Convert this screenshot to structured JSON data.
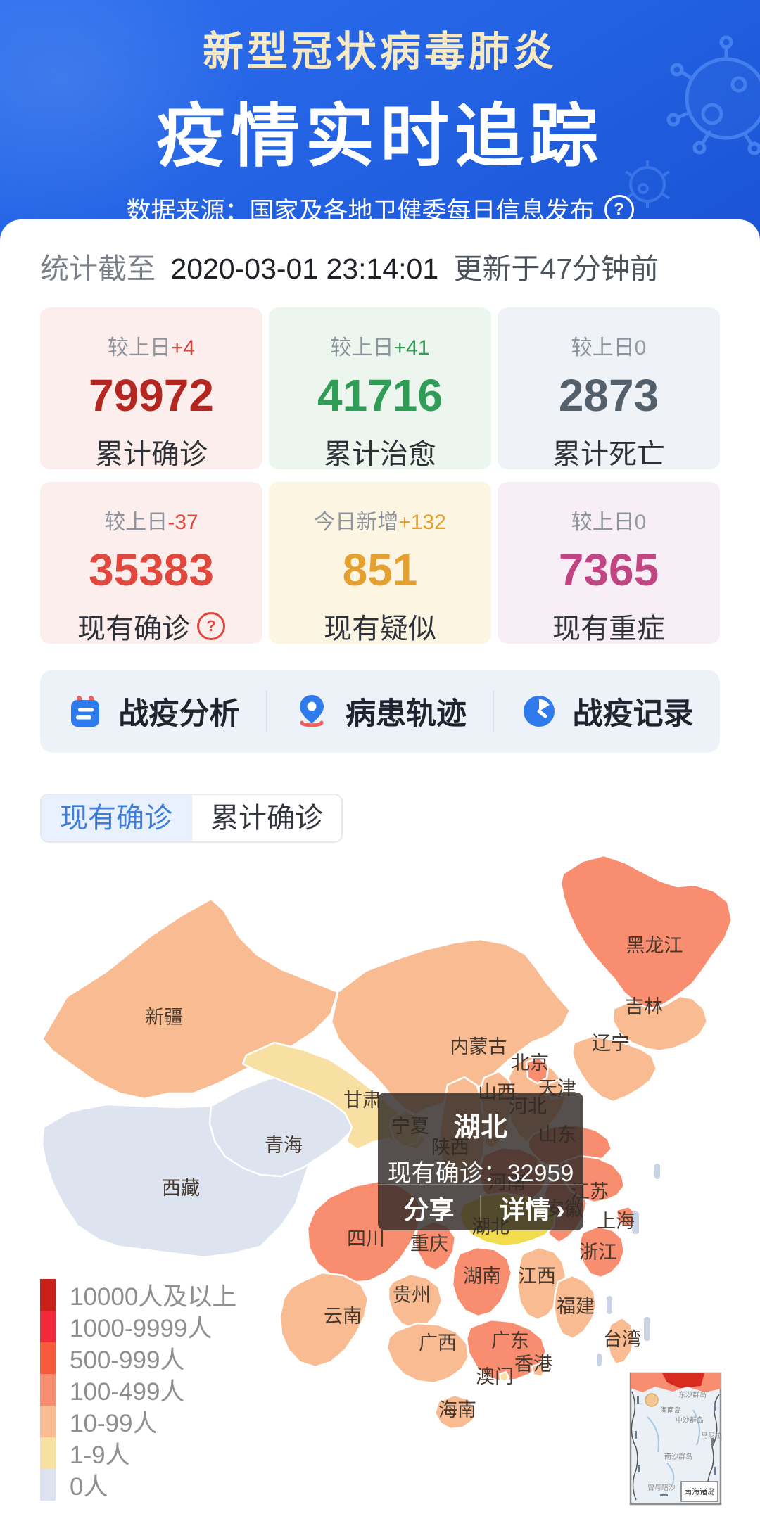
{
  "header": {
    "title_line1": "新型冠状病毒肺炎",
    "title_line2": "疫情实时追踪",
    "source_label": "数据来源：国家及各地卫健委每日信息发布",
    "help_icon": "?"
  },
  "stats_bar": {
    "prefix": "统计截至",
    "datetime": "2020-03-01 23:14:01",
    "suffix": "更新于47分钟前"
  },
  "stat_cards": [
    {
      "delta_label": "较上日",
      "delta_value": "+4",
      "value": "79972",
      "label": "累计确诊",
      "bg": "#fceeec",
      "value_color": "#b4261f",
      "delta_color": "#d8453c",
      "has_help": false
    },
    {
      "delta_label": "较上日",
      "delta_value": "+41",
      "value": "41716",
      "label": "累计治愈",
      "bg": "#ecf6ef",
      "value_color": "#2f9d56",
      "delta_color": "#2f9d56",
      "has_help": false
    },
    {
      "delta_label": "较上日",
      "delta_value": "0",
      "value": "2873",
      "label": "累计死亡",
      "bg": "#eff3f8",
      "value_color": "#54616c",
      "delta_color": "#949ba4",
      "has_help": false
    },
    {
      "delta_label": "较上日",
      "delta_value": "-37",
      "value": "35383",
      "label": "现有确诊",
      "bg": "#fceeec",
      "value_color": "#e1483d",
      "delta_color": "#e1483d",
      "has_help": true
    },
    {
      "delta_label": "今日新增",
      "delta_value": "+132",
      "value": "851",
      "label": "现有疑似",
      "bg": "#fcf5e2",
      "value_color": "#e5a02f",
      "delta_color": "#e5a02f",
      "has_help": false
    },
    {
      "delta_label": "较上日",
      "delta_value": "0",
      "value": "7365",
      "label": "现有重症",
      "bg": "#f8eef5",
      "value_color": "#c14583",
      "delta_color": "#949ba4",
      "has_help": false
    }
  ],
  "quick_links": [
    {
      "label": "战疫分析",
      "icon": "notebook-icon"
    },
    {
      "label": "病患轨迹",
      "icon": "location-pin-icon"
    },
    {
      "label": "战疫记录",
      "icon": "clock-icon"
    }
  ],
  "tabs": [
    {
      "label": "现有确诊",
      "active": true
    },
    {
      "label": "累计确诊",
      "active": false
    }
  ],
  "map": {
    "tooltip": {
      "province": "湖北",
      "metric_label": "现有确诊：",
      "value": "32959",
      "actions": [
        "分享",
        "详情"
      ],
      "arrow": "›"
    },
    "legend": [
      {
        "label": "10000人及以上",
        "color": "#c9201a"
      },
      {
        "label": "1000-9999人",
        "color": "#f1293b"
      },
      {
        "label": "500-999人",
        "color": "#fa5a3c"
      },
      {
        "label": "100-499人",
        "color": "#f88d6f"
      },
      {
        "label": "10-99人",
        "color": "#f9bc92"
      },
      {
        "label": "1-9人",
        "color": "#f8dfa2"
      },
      {
        "label": "0人",
        "color": "#dde3ef"
      }
    ],
    "selected_color": "#f2dc4e",
    "label_color": "#46392f",
    "inset_label": "南海诸岛",
    "inset_minor_labels": [
      "海南岛",
      "东沙群岛",
      "中沙群岛",
      "南沙群岛",
      "马尼拉",
      "曾母暗沙"
    ],
    "provinces": [
      {
        "id": "xinjiang",
        "name": "新疆",
        "level": 4
      },
      {
        "id": "xizang",
        "name": "西藏",
        "level": 6
      },
      {
        "id": "qinghai",
        "name": "青海",
        "level": 6
      },
      {
        "id": "gansu",
        "name": "甘肃",
        "level": 5
      },
      {
        "id": "ningxia",
        "name": "宁夏",
        "level": 5
      },
      {
        "id": "neimenggu",
        "name": "内蒙古",
        "level": 4
      },
      {
        "id": "heilongjiang",
        "name": "黑龙江",
        "level": 3
      },
      {
        "id": "jilin",
        "name": "吉林",
        "level": 4
      },
      {
        "id": "liaoning",
        "name": "辽宁",
        "level": 4
      },
      {
        "id": "hebei",
        "name": "河北",
        "level": 4
      },
      {
        "id": "beijing",
        "name": "北京",
        "level": 3
      },
      {
        "id": "tianjin",
        "name": "天津",
        "level": 4
      },
      {
        "id": "shanxi",
        "name": "山西",
        "level": 4
      },
      {
        "id": "shaanxi",
        "name": "陕西",
        "level": 4
      },
      {
        "id": "shandong",
        "name": "山东",
        "level": 3
      },
      {
        "id": "henan",
        "name": "河南",
        "level": 3
      },
      {
        "id": "anhui",
        "name": "安徽",
        "level": 3
      },
      {
        "id": "jiangsu",
        "name": "江苏",
        "level": 3
      },
      {
        "id": "shanghai",
        "name": "上海",
        "level": 3
      },
      {
        "id": "zhejiang",
        "name": "浙江",
        "level": 3
      },
      {
        "id": "jiangxi",
        "name": "江西",
        "level": 4
      },
      {
        "id": "fujian",
        "name": "福建",
        "level": 4
      },
      {
        "id": "taiwan",
        "name": "台湾",
        "level": 4
      },
      {
        "id": "hubei",
        "name": "湖北",
        "level": 0,
        "selected": true
      },
      {
        "id": "hunan",
        "name": "湖南",
        "level": 3
      },
      {
        "id": "chongqing",
        "name": "重庆",
        "level": 3
      },
      {
        "id": "sichuan",
        "name": "四川",
        "level": 3
      },
      {
        "id": "guizhou",
        "name": "贵州",
        "level": 4
      },
      {
        "id": "yunnan",
        "name": "云南",
        "level": 4
      },
      {
        "id": "guangxi",
        "name": "广西",
        "level": 4
      },
      {
        "id": "guangdong",
        "name": "广东",
        "level": 3
      },
      {
        "id": "hongkong",
        "name": "香港",
        "level": 4
      },
      {
        "id": "macau",
        "name": "澳门",
        "level": 5
      },
      {
        "id": "hainan",
        "name": "海南",
        "level": 4
      }
    ]
  }
}
